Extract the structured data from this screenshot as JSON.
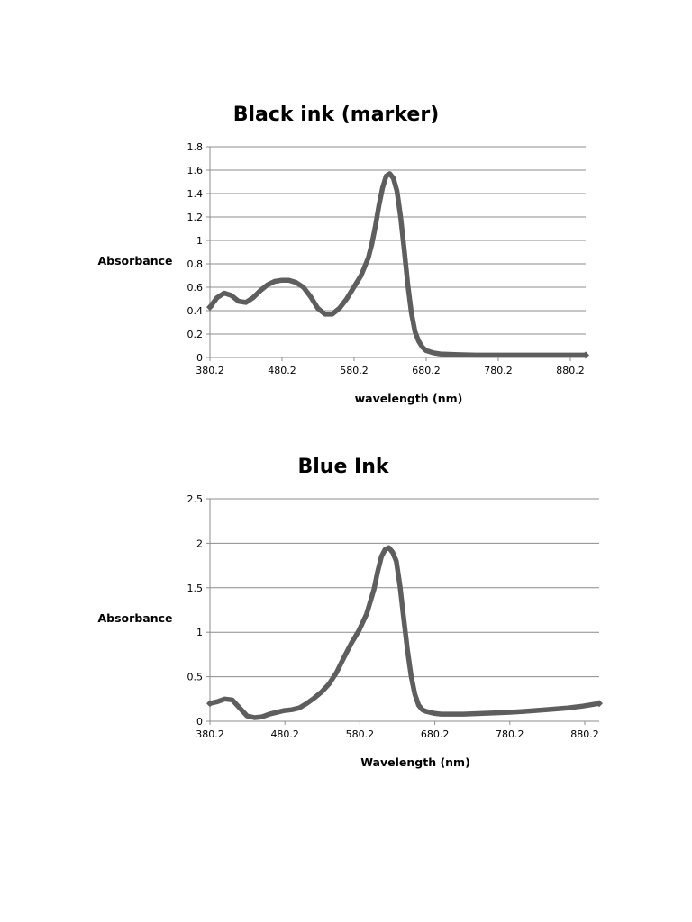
{
  "chart_data": [
    {
      "type": "line",
      "title": "Black ink (marker)",
      "xlabel": "wavelength (nm)",
      "ylabel": "Absorbance",
      "xlim": [
        380.2,
        902
      ],
      "ylim": [
        0,
        1.8
      ],
      "x_ticks": [
        "380.2",
        "480.2",
        "580.2",
        "680.2",
        "780.2",
        "880.2"
      ],
      "y_ticks": [
        "0",
        "0.2",
        "0.4",
        "0.6",
        "0.8",
        "1",
        "1.2",
        "1.4",
        "1.6",
        "1.8"
      ],
      "grid": true,
      "legend": "none",
      "color": "#5e5e5e",
      "series": [
        {
          "x": [
            380.2,
            390,
            400,
            410,
            420,
            430,
            440,
            450,
            460,
            470,
            480,
            490,
            500,
            510,
            520,
            530,
            540,
            550,
            560,
            570,
            580,
            590,
            600,
            605,
            610,
            615,
            620,
            625,
            630,
            635,
            640,
            645,
            650,
            655,
            660,
            665,
            670,
            675,
            680,
            690,
            700,
            720,
            750,
            800,
            850,
            880,
            902
          ],
          "y": [
            0.43,
            0.51,
            0.55,
            0.53,
            0.48,
            0.47,
            0.51,
            0.57,
            0.62,
            0.65,
            0.66,
            0.66,
            0.64,
            0.6,
            0.52,
            0.42,
            0.37,
            0.37,
            0.42,
            0.5,
            0.6,
            0.7,
            0.85,
            0.97,
            1.12,
            1.3,
            1.45,
            1.55,
            1.57,
            1.53,
            1.42,
            1.2,
            0.92,
            0.62,
            0.38,
            0.22,
            0.14,
            0.09,
            0.06,
            0.04,
            0.03,
            0.025,
            0.02,
            0.02,
            0.02,
            0.02,
            0.02
          ]
        }
      ]
    },
    {
      "type": "line",
      "title": "Blue Ink",
      "xlabel": "Wavelength (nm)",
      "ylabel": "Absorbance",
      "xlim": [
        380.2,
        902
      ],
      "ylim": [
        0,
        2.5
      ],
      "x_ticks": [
        "380.2",
        "480.2",
        "580.2",
        "680.2",
        "780.2",
        "880.2"
      ],
      "y_ticks": [
        "0",
        "0.5",
        "1",
        "1.5",
        "2",
        "2.5"
      ],
      "grid": true,
      "legend": "none",
      "color": "#5e5e5e",
      "series": [
        {
          "x": [
            380.2,
            390,
            400,
            410,
            420,
            430,
            440,
            450,
            460,
            470,
            480,
            490,
            500,
            510,
            520,
            530,
            540,
            550,
            560,
            570,
            580,
            590,
            600,
            605,
            610,
            615,
            620,
            625,
            630,
            635,
            640,
            645,
            650,
            655,
            660,
            665,
            670,
            675,
            680,
            690,
            700,
            720,
            750,
            780,
            800,
            830,
            860,
            880,
            902
          ],
          "y": [
            0.2,
            0.22,
            0.25,
            0.24,
            0.15,
            0.06,
            0.04,
            0.05,
            0.08,
            0.1,
            0.12,
            0.13,
            0.15,
            0.2,
            0.26,
            0.33,
            0.42,
            0.55,
            0.72,
            0.88,
            1.02,
            1.2,
            1.48,
            1.68,
            1.85,
            1.93,
            1.95,
            1.9,
            1.8,
            1.52,
            1.15,
            0.8,
            0.5,
            0.3,
            0.18,
            0.13,
            0.11,
            0.1,
            0.09,
            0.08,
            0.08,
            0.08,
            0.09,
            0.1,
            0.11,
            0.13,
            0.15,
            0.17,
            0.2
          ]
        }
      ]
    }
  ]
}
